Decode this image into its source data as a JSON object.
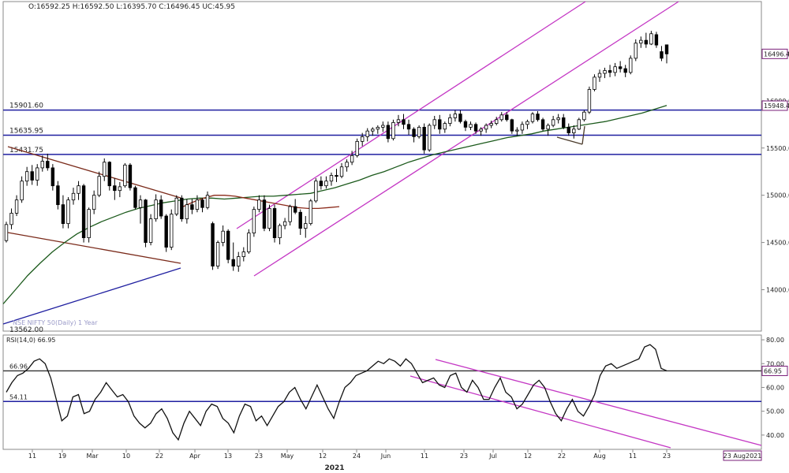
{
  "header": {
    "ohlc": "O:16592.25  H:16592.50  L:16395.70  C:16496.45  UC:45.95"
  },
  "colors": {
    "background": "#ffffff",
    "frame": "#7f7f7f",
    "horizontal_level": "#1f1fa0",
    "channel": "#c437c4",
    "ma_green": "#1c5a1c",
    "ma_brown": "#8b2a1a",
    "support_line": "#1f1fa0",
    "candle": "#000000",
    "price_tag": "#7a1f7a"
  },
  "chart_data": [
    {
      "type": "candlestick",
      "title": "",
      "subtitle": "",
      "watermark": "NSE NIFTY 50(Daily) 1 Year",
      "current_price": 16496.4,
      "current_price_label": "16496.4",
      "level_tag": "15948.4",
      "ylim": [
        13562,
        17050
      ],
      "y_ticks": [
        14000,
        14500,
        15000,
        15500,
        16000,
        16500
      ],
      "y_tick_labels": [
        "14000.00",
        "14500.00",
        "15000.00",
        "15500.00",
        "16000.00",
        "16500.00"
      ],
      "horizontal_levels": [
        {
          "value": 15901.6,
          "label": "15901.60"
        },
        {
          "value": 15635.95,
          "label": "15635.95"
        },
        {
          "value": 15431.75,
          "label": "15431.75"
        }
      ],
      "low_label": {
        "value": 13562,
        "label": "13562.00"
      },
      "x_dates": [
        "Feb 11",
        "Feb 19",
        "Mar",
        "Mar 10",
        "Mar 22",
        "Apr",
        "Apr 13",
        "Apr 23",
        "May",
        "May 12",
        "May 24",
        "Jun",
        "Jun 11",
        "Jun 23",
        "Jul",
        "Jul 12",
        "Jul 22",
        "Aug",
        "Aug 11",
        "Aug 23"
      ],
      "x_tick_labels": [
        "11",
        "19",
        "Mar",
        "10",
        "22",
        "Apr",
        "13",
        "23",
        "May",
        "12",
        "24",
        "Jun",
        "11",
        "23",
        "Jul",
        "12",
        "22",
        "Aug",
        "11",
        "23"
      ],
      "year_label": "2021",
      "date_tag": "23 Aug2021",
      "candles": [
        [
          14520,
          14720,
          14500,
          14690
        ],
        [
          14690,
          14860,
          14640,
          14810
        ],
        [
          14810,
          15000,
          14780,
          14950
        ],
        [
          14950,
          15200,
          14920,
          15150
        ],
        [
          15150,
          15300,
          15100,
          15250
        ],
        [
          15250,
          15320,
          15110,
          15160
        ],
        [
          15160,
          15330,
          15100,
          15290
        ],
        [
          15290,
          15420,
          15250,
          15360
        ],
        [
          15360,
          15440,
          15260,
          15290
        ],
        [
          15290,
          15330,
          15050,
          15100
        ],
        [
          15100,
          15150,
          14850,
          14900
        ],
        [
          14900,
          15000,
          14650,
          14700
        ],
        [
          14700,
          14980,
          14650,
          14950
        ],
        [
          14950,
          15080,
          14900,
          15020
        ],
        [
          15020,
          15150,
          14950,
          15100
        ],
        [
          15100,
          15120,
          14500,
          14550
        ],
        [
          14550,
          14870,
          14500,
          14850
        ],
        [
          14850,
          15050,
          14800,
          15000
        ],
        [
          15000,
          15250,
          14980,
          15200
        ],
        [
          15200,
          15390,
          15150,
          15350
        ],
        [
          15350,
          15360,
          15050,
          15100
        ],
        [
          15100,
          15180,
          14950,
          15050
        ],
        [
          15050,
          15140,
          14980,
          15090
        ],
        [
          15100,
          15340,
          15080,
          15320
        ],
        [
          15320,
          15340,
          15050,
          15080
        ],
        [
          15080,
          15100,
          14850,
          14870
        ],
        [
          14870,
          15000,
          14700,
          14950
        ],
        [
          14950,
          14960,
          14450,
          14500
        ],
        [
          14500,
          14800,
          14470,
          14750
        ],
        [
          14750,
          15010,
          14720,
          14950
        ],
        [
          14950,
          15000,
          14750,
          14780
        ],
        [
          14780,
          14800,
          14400,
          14450
        ],
        [
          14450,
          14850,
          14420,
          14800
        ],
        [
          14800,
          15000,
          14780,
          14970
        ],
        [
          14970,
          15000,
          14720,
          14750
        ],
        [
          14750,
          14960,
          14700,
          14900
        ],
        [
          14900,
          14960,
          14800,
          14850
        ],
        [
          14850,
          15000,
          14820,
          14950
        ],
        [
          14950,
          14970,
          14820,
          14870
        ],
        [
          14870,
          15040,
          14850,
          15000
        ],
        [
          14700,
          14720,
          14210,
          14250
        ],
        [
          14250,
          14520,
          14220,
          14500
        ],
        [
          14500,
          14680,
          14460,
          14620
        ],
        [
          14620,
          14640,
          14280,
          14320
        ],
        [
          14320,
          14500,
          14200,
          14250
        ],
        [
          14250,
          14400,
          14190,
          14350
        ],
        [
          14350,
          14450,
          14300,
          14400
        ],
        [
          14400,
          14640,
          14380,
          14600
        ],
        [
          14600,
          14880,
          14560,
          14850
        ],
        [
          14850,
          15000,
          14820,
          14950
        ],
        [
          14950,
          15000,
          14620,
          14650
        ],
        [
          14650,
          14900,
          14620,
          14860
        ],
        [
          14860,
          14900,
          14500,
          14550
        ],
        [
          14550,
          14700,
          14480,
          14680
        ],
        [
          14680,
          14760,
          14640,
          14720
        ],
        [
          14720,
          14900,
          14680,
          14880
        ],
        [
          14880,
          14960,
          14800,
          14820
        ],
        [
          14820,
          14850,
          14580,
          14650
        ],
        [
          14650,
          14780,
          14550,
          14700
        ],
        [
          14700,
          14960,
          14680,
          14940
        ],
        [
          14940,
          15180,
          14920,
          15150
        ],
        [
          15150,
          15200,
          15060,
          15100
        ],
        [
          15100,
          15200,
          15070,
          15150
        ],
        [
          15150,
          15240,
          15100,
          15210
        ],
        [
          15210,
          15280,
          15140,
          15200
        ],
        [
          15200,
          15340,
          15180,
          15300
        ],
        [
          15300,
          15380,
          15250,
          15350
        ],
        [
          15350,
          15470,
          15320,
          15420
        ],
        [
          15420,
          15600,
          15400,
          15570
        ],
        [
          15570,
          15660,
          15520,
          15620
        ],
        [
          15620,
          15710,
          15570,
          15680
        ],
        [
          15680,
          15720,
          15630,
          15700
        ],
        [
          15700,
          15740,
          15650,
          15720
        ],
        [
          15720,
          15780,
          15670,
          15740
        ],
        [
          15740,
          15780,
          15560,
          15600
        ],
        [
          15600,
          15800,
          15580,
          15770
        ],
        [
          15770,
          15850,
          15730,
          15800
        ],
        [
          15800,
          15860,
          15700,
          15750
        ],
        [
          15750,
          15800,
          15640,
          15700
        ],
        [
          15700,
          15720,
          15560,
          15620
        ],
        [
          15620,
          15740,
          15600,
          15720
        ],
        [
          15720,
          15760,
          15440,
          15480
        ],
        [
          15480,
          15760,
          15460,
          15740
        ],
        [
          15740,
          15840,
          15700,
          15800
        ],
        [
          15800,
          15850,
          15650,
          15700
        ],
        [
          15700,
          15780,
          15660,
          15760
        ],
        [
          15760,
          15860,
          15730,
          15820
        ],
        [
          15820,
          15900,
          15780,
          15860
        ],
        [
          15860,
          15900,
          15760,
          15780
        ],
        [
          15780,
          15800,
          15680,
          15720
        ],
        [
          15720,
          15780,
          15690,
          15750
        ],
        [
          15750,
          15770,
          15650,
          15680
        ],
        [
          15680,
          15720,
          15630,
          15700
        ],
        [
          15700,
          15760,
          15660,
          15740
        ],
        [
          15740,
          15790,
          15710,
          15760
        ],
        [
          15760,
          15830,
          15740,
          15800
        ],
        [
          15800,
          15880,
          15780,
          15850
        ],
        [
          15850,
          15880,
          15780,
          15800
        ],
        [
          15800,
          15810,
          15650,
          15680
        ],
        [
          15680,
          15720,
          15630,
          15690
        ],
        [
          15690,
          15780,
          15650,
          15750
        ],
        [
          15750,
          15800,
          15700,
          15780
        ],
        [
          15780,
          15880,
          15760,
          15860
        ],
        [
          15860,
          15890,
          15780,
          15800
        ],
        [
          15800,
          15820,
          15680,
          15700
        ],
        [
          15700,
          15760,
          15630,
          15740
        ],
        [
          15740,
          15840,
          15720,
          15800
        ],
        [
          15800,
          15860,
          15760,
          15820
        ],
        [
          15820,
          15860,
          15700,
          15720
        ],
        [
          15720,
          15760,
          15630,
          15660
        ],
        [
          15660,
          15740,
          15600,
          15700
        ],
        [
          15700,
          15820,
          15690,
          15800
        ],
        [
          15800,
          15900,
          15780,
          15880
        ],
        [
          15880,
          16150,
          15860,
          16120
        ],
        [
          16120,
          16280,
          16100,
          16250
        ],
        [
          16250,
          16330,
          16200,
          16290
        ],
        [
          16290,
          16350,
          16240,
          16320
        ],
        [
          16320,
          16380,
          16250,
          16300
        ],
        [
          16300,
          16400,
          16260,
          16360
        ],
        [
          16360,
          16420,
          16300,
          16340
        ],
        [
          16340,
          16380,
          16250,
          16300
        ],
        [
          16300,
          16480,
          16280,
          16450
        ],
        [
          16450,
          16650,
          16420,
          16610
        ],
        [
          16610,
          16680,
          16560,
          16640
        ],
        [
          16640,
          16720,
          16560,
          16600
        ],
        [
          16600,
          16740,
          16590,
          16710
        ],
        [
          16700,
          16730,
          16560,
          16590
        ],
        [
          16520,
          16580,
          16420,
          16450
        ],
        [
          16592.25,
          16592.5,
          16395.7,
          16496.45
        ]
      ],
      "moving_averages": [
        {
          "period_color": "green",
          "values": [
            13850,
            14000,
            14150,
            14280,
            14400,
            14500,
            14590,
            14660,
            14720,
            14770,
            14820,
            14860,
            14890,
            14920,
            14940,
            14960,
            14970,
            14970,
            14960,
            14970,
            14980,
            14990,
            14990,
            15000,
            15010,
            15020,
            15050,
            15080,
            15120,
            15160,
            15210,
            15250,
            15300,
            15350,
            15390,
            15430,
            15460,
            15490,
            15520,
            15550,
            15580,
            15610,
            15630,
            15650,
            15680,
            15700,
            15720,
            15740,
            15760,
            15780,
            15810,
            15840,
            15870,
            15910,
            15950
          ]
        },
        {
          "period_color": "brown",
          "values": [
            14880,
            14930,
            14970,
            15000,
            15000,
            14990,
            14970,
            14950,
            14930,
            14910,
            14890,
            14870,
            14860,
            14860,
            14870,
            14880
          ]
        }
      ],
      "rsi": {
        "label": "RSI(14,0) 66.95",
        "current_value": 66.95,
        "current_label": "66.95",
        "levels": [
          {
            "value": 66.96,
            "label": "66.96"
          },
          {
            "value": 54.11,
            "label": "54.11"
          }
        ],
        "ylim": [
          34,
          82
        ],
        "y_ticks": [
          40,
          50,
          60,
          70,
          80
        ],
        "y_tick_labels": [
          "40.00",
          "50.00",
          "60.00",
          "70.00",
          "80.00"
        ],
        "values": [
          58,
          62,
          65,
          66,
          68,
          71,
          72,
          70,
          64,
          55,
          46,
          48,
          56,
          57,
          49,
          50,
          55,
          58,
          62,
          59,
          56,
          57,
          54,
          48,
          45,
          43,
          45,
          49,
          51,
          47,
          41,
          38,
          45,
          50,
          47,
          44,
          50,
          53,
          52,
          47,
          45,
          41,
          48,
          53,
          52,
          46,
          48,
          44,
          48,
          52,
          54,
          58,
          60,
          55,
          51,
          56,
          61,
          56,
          51,
          47,
          54,
          60,
          62,
          65,
          66,
          67,
          69,
          71,
          70,
          72,
          71,
          69,
          72,
          70,
          66,
          62,
          63,
          64,
          61,
          60,
          65,
          66,
          60,
          58,
          63,
          60,
          55,
          55,
          60,
          64,
          58,
          56,
          51,
          53,
          57,
          61,
          63,
          60,
          54,
          49,
          46,
          51,
          55,
          50,
          48,
          52,
          57,
          65,
          69,
          70,
          68,
          69,
          70,
          71,
          72,
          77,
          78,
          76,
          68,
          67
        ]
      }
    }
  ]
}
